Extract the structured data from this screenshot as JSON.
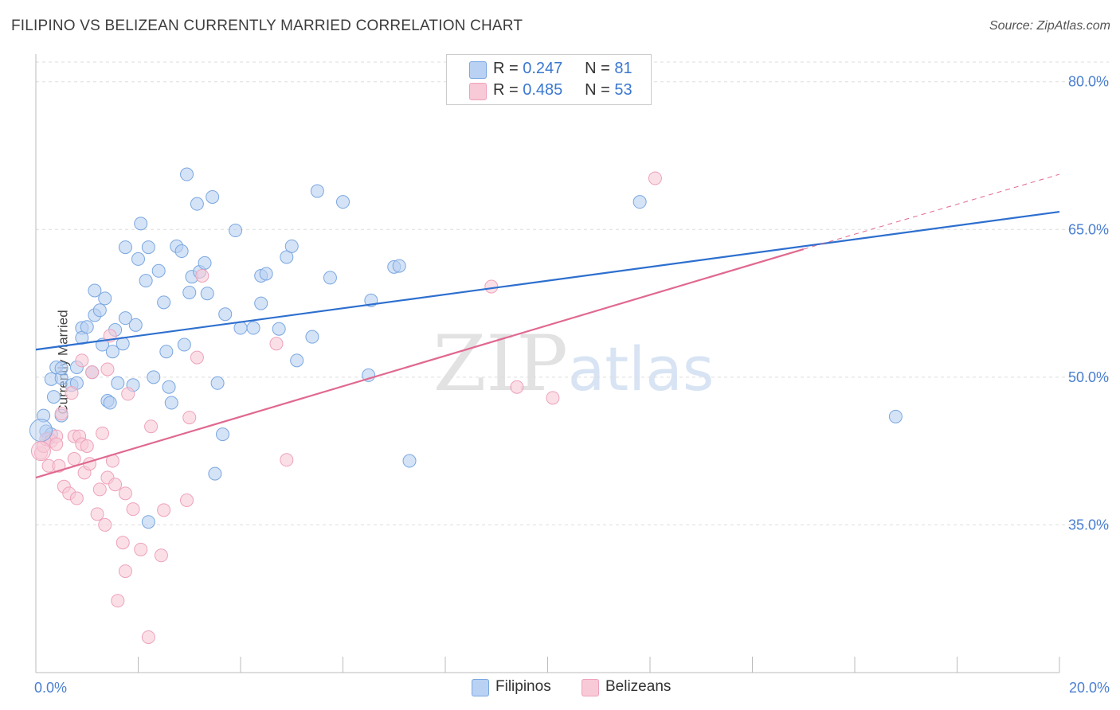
{
  "chart_data": {
    "type": "scatter",
    "title": "FILIPINO VS BELIZEAN CURRENTLY MARRIED CORRELATION CHART",
    "source": "Source: ZipAtlas.com",
    "xlabel": "",
    "ylabel": "Currently Married",
    "xlim": [
      0,
      20
    ],
    "ylim": [
      20,
      82
    ],
    "x_tick_labels": [
      "0.0%",
      "20.0%"
    ],
    "y_ticks": [
      35,
      50,
      65,
      80
    ],
    "y_tick_labels": [
      "35.0%",
      "50.0%",
      "65.0%",
      "80.0%"
    ],
    "grid": true,
    "watermark": "ZIPatlas",
    "legend": {
      "series1": {
        "r_label": "R =",
        "r_value": "0.247",
        "n_label": "N =",
        "n_value": "81"
      },
      "series2": {
        "r_label": "R =",
        "r_value": "0.485",
        "n_label": "N =",
        "n_value": "53"
      }
    },
    "series": [
      {
        "name": "Filipinos",
        "color": "#7aa7e0",
        "fill": "#b9d1f2",
        "line_color": "#2d6fcf",
        "trend": {
          "x0": 0,
          "y0": 52.8,
          "x1": 20,
          "y1": 66.8
        },
        "points": [
          [
            0.15,
            46.1
          ],
          [
            0.2,
            44.5
          ],
          [
            0.25,
            43.8
          ],
          [
            0.3,
            44.2
          ],
          [
            0.35,
            48.0
          ],
          [
            0.3,
            49.8
          ],
          [
            0.4,
            51.0
          ],
          [
            0.5,
            49.9
          ],
          [
            0.5,
            50.9
          ],
          [
            0.5,
            46.1
          ],
          [
            0.7,
            49.2
          ],
          [
            0.8,
            49.4
          ],
          [
            0.8,
            51.0
          ],
          [
            0.9,
            55.0
          ],
          [
            0.9,
            54.0
          ],
          [
            1.0,
            55.1
          ],
          [
            1.1,
            50.5
          ],
          [
            1.15,
            56.3
          ],
          [
            1.15,
            58.8
          ],
          [
            1.25,
            56.8
          ],
          [
            1.3,
            53.3
          ],
          [
            1.35,
            58.0
          ],
          [
            1.4,
            47.6
          ],
          [
            1.45,
            47.4
          ],
          [
            1.5,
            52.6
          ],
          [
            1.55,
            54.8
          ],
          [
            1.6,
            49.4
          ],
          [
            1.7,
            53.4
          ],
          [
            1.75,
            56.0
          ],
          [
            1.75,
            63.2
          ],
          [
            1.9,
            49.2
          ],
          [
            1.95,
            55.3
          ],
          [
            2.0,
            62.0
          ],
          [
            2.05,
            65.6
          ],
          [
            2.15,
            59.8
          ],
          [
            2.2,
            35.3
          ],
          [
            2.2,
            63.2
          ],
          [
            2.3,
            50.0
          ],
          [
            2.4,
            60.8
          ],
          [
            2.5,
            57.6
          ],
          [
            2.55,
            52.6
          ],
          [
            2.6,
            49.0
          ],
          [
            2.65,
            47.4
          ],
          [
            2.75,
            63.3
          ],
          [
            2.85,
            62.8
          ],
          [
            2.9,
            53.3
          ],
          [
            2.95,
            70.6
          ],
          [
            3.0,
            58.6
          ],
          [
            3.05,
            60.2
          ],
          [
            3.15,
            67.6
          ],
          [
            3.2,
            60.7
          ],
          [
            3.3,
            61.6
          ],
          [
            3.35,
            58.5
          ],
          [
            3.45,
            68.3
          ],
          [
            3.5,
            40.2
          ],
          [
            3.55,
            49.4
          ],
          [
            3.65,
            44.2
          ],
          [
            3.7,
            56.4
          ],
          [
            3.9,
            64.9
          ],
          [
            4.0,
            55.0
          ],
          [
            4.25,
            55.0
          ],
          [
            4.4,
            57.5
          ],
          [
            4.4,
            60.3
          ],
          [
            4.5,
            60.5
          ],
          [
            4.75,
            54.9
          ],
          [
            4.9,
            62.2
          ],
          [
            5.0,
            63.3
          ],
          [
            5.1,
            51.7
          ],
          [
            5.4,
            54.1
          ],
          [
            5.5,
            68.9
          ],
          [
            5.75,
            60.1
          ],
          [
            6.0,
            67.8
          ],
          [
            6.5,
            50.2
          ],
          [
            6.55,
            57.8
          ],
          [
            7.0,
            61.2
          ],
          [
            7.1,
            61.3
          ],
          [
            7.3,
            41.5
          ],
          [
            11.8,
            67.8
          ],
          [
            16.8,
            46.0
          ]
        ]
      },
      {
        "name": "Belizeans",
        "color": "#eea2ba",
        "fill": "#f8c9d7",
        "line_color": "#e0698f",
        "trend": {
          "x0": 0,
          "y0": 39.8,
          "x1": 15.0,
          "y1": 63.0
        },
        "trend_extension": {
          "x0": 15.0,
          "y0": 63.0,
          "x1": 20,
          "y1": 70.6
        },
        "points": [
          [
            0.1,
            42.3
          ],
          [
            0.15,
            43.0
          ],
          [
            0.2,
            43.7
          ],
          [
            0.25,
            41.0
          ],
          [
            0.3,
            43.5
          ],
          [
            0.4,
            44.0
          ],
          [
            0.4,
            43.2
          ],
          [
            0.45,
            41.0
          ],
          [
            0.5,
            46.3
          ],
          [
            0.55,
            38.9
          ],
          [
            0.65,
            38.2
          ],
          [
            0.7,
            48.4
          ],
          [
            0.75,
            44.0
          ],
          [
            0.75,
            41.7
          ],
          [
            0.8,
            37.7
          ],
          [
            0.85,
            44.0
          ],
          [
            0.9,
            51.7
          ],
          [
            0.9,
            43.2
          ],
          [
            0.95,
            40.3
          ],
          [
            1.0,
            43.0
          ],
          [
            1.05,
            41.2
          ],
          [
            1.1,
            50.5
          ],
          [
            1.2,
            36.1
          ],
          [
            1.25,
            38.6
          ],
          [
            1.3,
            44.3
          ],
          [
            1.35,
            35.0
          ],
          [
            1.4,
            39.8
          ],
          [
            1.4,
            50.8
          ],
          [
            1.45,
            54.2
          ],
          [
            1.5,
            41.5
          ],
          [
            1.55,
            39.1
          ],
          [
            1.6,
            27.3
          ],
          [
            1.7,
            33.2
          ],
          [
            1.75,
            38.2
          ],
          [
            1.75,
            30.3
          ],
          [
            1.8,
            48.3
          ],
          [
            1.9,
            36.6
          ],
          [
            2.05,
            32.5
          ],
          [
            2.2,
            23.6
          ],
          [
            2.25,
            45.0
          ],
          [
            2.45,
            31.9
          ],
          [
            2.5,
            36.5
          ],
          [
            2.95,
            37.5
          ],
          [
            3.0,
            45.9
          ],
          [
            3.15,
            52.0
          ],
          [
            3.25,
            60.3
          ],
          [
            4.7,
            53.4
          ],
          [
            4.9,
            41.6
          ],
          [
            8.9,
            59.2
          ],
          [
            9.4,
            49.0
          ],
          [
            10.1,
            47.9
          ],
          [
            12.1,
            70.2
          ]
        ]
      }
    ]
  }
}
